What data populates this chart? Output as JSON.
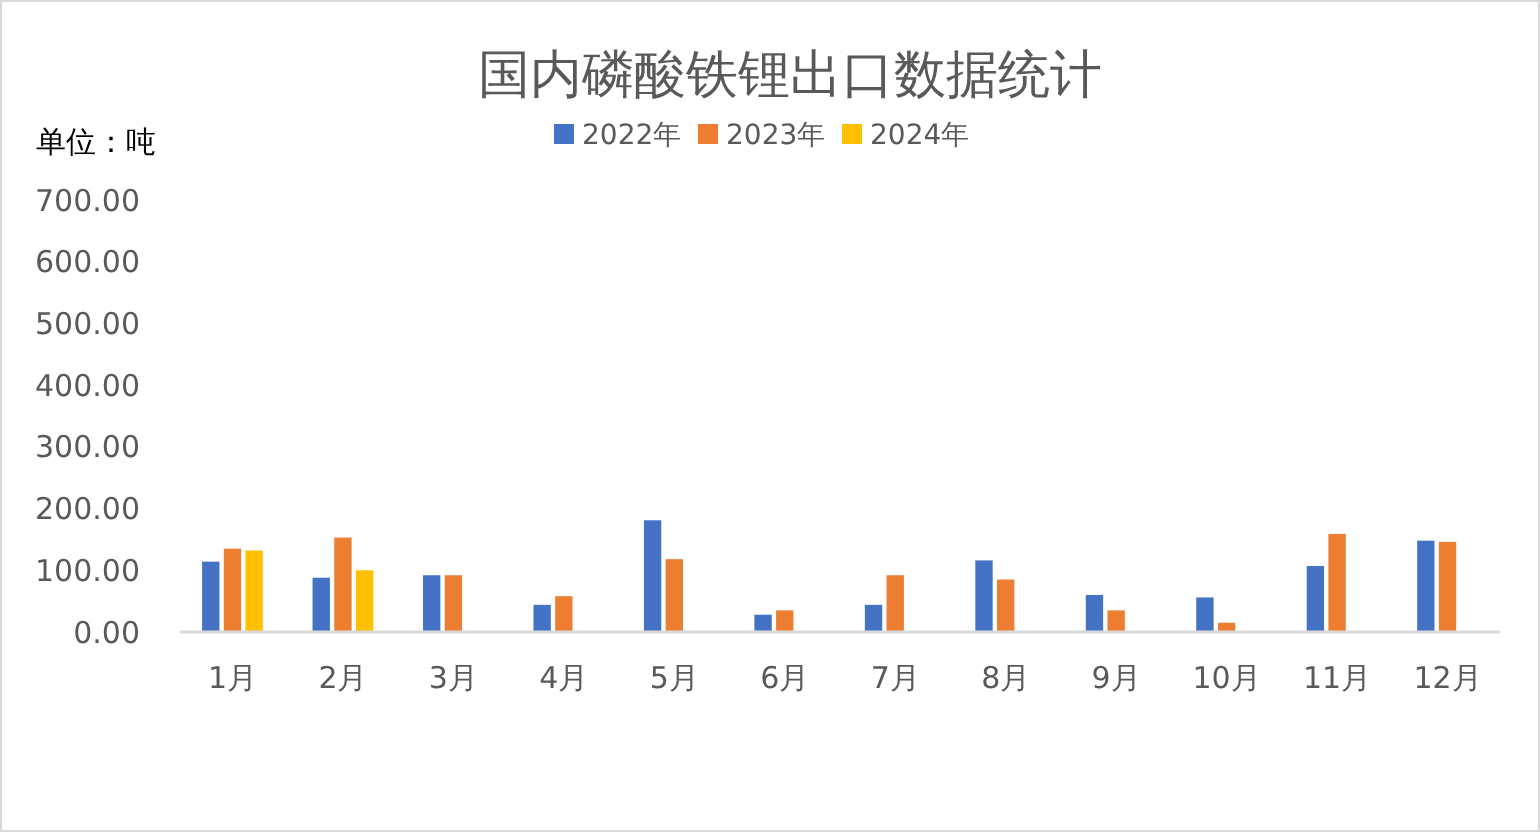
{
  "chart_data": {
    "type": "bar",
    "title": "国内磷酸铁锂出口数据统计",
    "ylabel": "单位：吨",
    "categories": [
      "1月",
      "2月",
      "3月",
      "4月",
      "5月",
      "6月",
      "7月",
      "8月",
      "9月",
      "10月",
      "11月",
      "12月"
    ],
    "series": [
      {
        "name": "2022年",
        "color": "#4472c4",
        "values": [
          114,
          88,
          92,
          44,
          181,
          28,
          44,
          116,
          60,
          56,
          107,
          148
        ]
      },
      {
        "name": "2023年",
        "color": "#ed7d31",
        "values": [
          135,
          153,
          92,
          58,
          118,
          35,
          92,
          85,
          35,
          15,
          159,
          146
        ]
      },
      {
        "name": "2024年",
        "color": "#ffc000",
        "values": [
          132,
          100,
          null,
          null,
          null,
          null,
          null,
          null,
          null,
          null,
          null,
          null
        ]
      }
    ],
    "ylim": [
      0,
      700
    ],
    "yticks": [
      {
        "value": 0,
        "label": "0.00"
      },
      {
        "value": 100,
        "label": "100.00"
      },
      {
        "value": 200,
        "label": "200.00"
      },
      {
        "value": 300,
        "label": "300.00"
      },
      {
        "value": 400,
        "label": "400.00"
      },
      {
        "value": 500,
        "label": "500.00"
      },
      {
        "value": 600,
        "label": "600.00"
      },
      {
        "value": 700,
        "label": "700.00"
      }
    ],
    "grid": false,
    "legend": "top"
  }
}
